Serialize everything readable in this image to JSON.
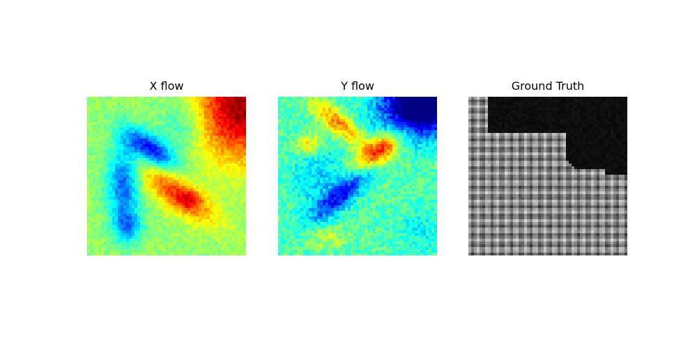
{
  "figure": {
    "background": "#ffffff"
  },
  "chart_data": [
    {
      "type": "heatmap",
      "title": "X flow",
      "colormap": "jet",
      "axes": "off",
      "xlabel": "",
      "ylabel": "",
      "grid": false,
      "value_range": [
        0,
        1
      ],
      "blobs": [
        {
          "cx": 0.4,
          "cy": 0.33,
          "sx": 0.13,
          "sy": 0.055,
          "angle": -35,
          "amp": -0.38
        },
        {
          "cx": 0.23,
          "cy": 0.55,
          "sx": 0.07,
          "sy": 0.18,
          "angle": 0,
          "amp": -0.3
        },
        {
          "cx": 0.26,
          "cy": 0.82,
          "sx": 0.06,
          "sy": 0.07,
          "angle": 0,
          "amp": -0.22
        },
        {
          "cx": 0.58,
          "cy": 0.62,
          "sx": 0.19,
          "sy": 0.07,
          "angle": -35,
          "amp": 0.3
        },
        {
          "cx": 0.64,
          "cy": 0.65,
          "sx": 0.05,
          "sy": 0.04,
          "angle": 0,
          "amp": 0.12
        },
        {
          "cx": 0.97,
          "cy": 0.06,
          "sx": 0.2,
          "sy": 0.24,
          "angle": 0,
          "amp": 0.45
        },
        {
          "cx": 0.6,
          "cy": 0.18,
          "sx": 0.1,
          "sy": 0.12,
          "angle": 0,
          "amp": -0.12
        }
      ],
      "base_value": 0.52,
      "noise": 0.045,
      "seed": 7
    },
    {
      "type": "heatmap",
      "title": "Y flow",
      "colormap": "jet",
      "axes": "off",
      "xlabel": "",
      "ylabel": "",
      "grid": false,
      "value_range": [
        0,
        1
      ],
      "blobs": [
        {
          "cx": 0.9,
          "cy": 0.05,
          "sx": 0.18,
          "sy": 0.14,
          "angle": 0,
          "amp": -0.6
        },
        {
          "cx": 0.38,
          "cy": 0.17,
          "sx": 0.14,
          "sy": 0.05,
          "angle": -40,
          "amp": 0.3
        },
        {
          "cx": 0.64,
          "cy": 0.34,
          "sx": 0.11,
          "sy": 0.055,
          "angle": 35,
          "amp": 0.4
        },
        {
          "cx": 0.2,
          "cy": 0.3,
          "sx": 0.06,
          "sy": 0.05,
          "angle": 0,
          "amp": 0.22
        },
        {
          "cx": 0.4,
          "cy": 0.62,
          "sx": 0.17,
          "sy": 0.05,
          "angle": 40,
          "amp": -0.3
        },
        {
          "cx": 0.25,
          "cy": 0.5,
          "sx": 0.12,
          "sy": 0.18,
          "angle": 0,
          "amp": -0.12
        },
        {
          "cx": 0.3,
          "cy": 0.88,
          "sx": 0.1,
          "sy": 0.05,
          "angle": 0,
          "amp": 0.1
        },
        {
          "cx": 0.9,
          "cy": 0.85,
          "sx": 0.1,
          "sy": 0.12,
          "angle": 0,
          "amp": -0.08
        }
      ],
      "base_value": 0.46,
      "noise": 0.07,
      "seed": 19
    },
    {
      "type": "heatmap",
      "title": "Ground Truth",
      "colormap": "gray",
      "axes": "off",
      "xlabel": "",
      "ylabel": "",
      "grid": false,
      "value_range": [
        0,
        1
      ],
      "pattern": "checker-dots",
      "dark_region": "upper-right background",
      "seed": 3
    }
  ]
}
